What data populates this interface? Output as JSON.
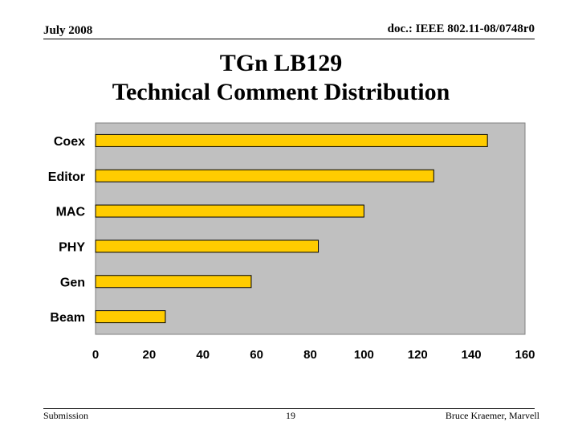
{
  "header": {
    "date": "July 2008",
    "doc": "doc.: IEEE 802.11-08/0748r0"
  },
  "title": {
    "line1": "TGn LB129",
    "line2": "Technical Comment Distribution"
  },
  "chart_data": {
    "type": "bar",
    "orientation": "horizontal",
    "categories": [
      "Coex",
      "Editor",
      "MAC",
      "PHY",
      "Gen",
      "Beam"
    ],
    "values": [
      146,
      126,
      100,
      83,
      58,
      26
    ],
    "xlim": [
      0,
      160
    ],
    "x_ticks": [
      0,
      20,
      40,
      60,
      80,
      100,
      120,
      140,
      160
    ],
    "grid": false,
    "legend": "none",
    "colors": {
      "bar": "#FFCC00",
      "bar_edge": "#000000",
      "plot_bg": "#C0C0C0",
      "plot_border": "#808080"
    }
  },
  "footer": {
    "left": "Submission",
    "page": "19",
    "right": "Bruce Kraemer, Marvell"
  }
}
